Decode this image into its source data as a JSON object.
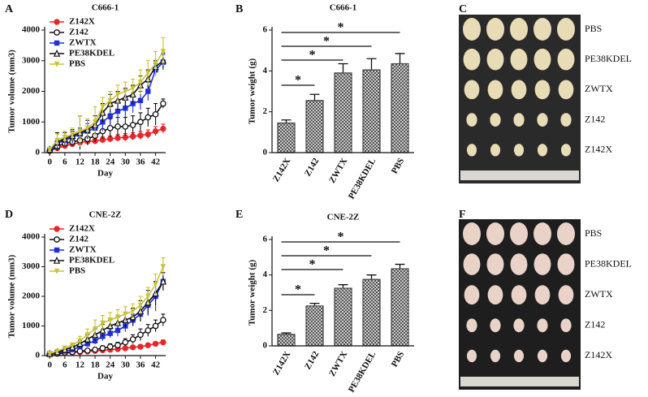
{
  "panels": [
    "A",
    "B",
    "C",
    "D",
    "E",
    "F"
  ],
  "chart_data": [
    {
      "type": "line",
      "title": "C666-1",
      "xlabel": "Day",
      "ylabel": "Tumor volume (mm3)",
      "x": [
        0,
        3,
        6,
        9,
        12,
        15,
        18,
        21,
        24,
        27,
        30,
        33,
        36,
        39,
        42,
        45
      ],
      "xlim": [
        -2,
        46
      ],
      "xticks": [
        0,
        6,
        12,
        18,
        24,
        30,
        36,
        42
      ],
      "ylim": [
        0,
        4000
      ],
      "yticks": [
        0,
        1000,
        2000,
        3000,
        4000
      ],
      "legend": "top-left",
      "series": [
        {
          "name": "Z142X",
          "color": "#e8262a",
          "marker": "circle-filled",
          "values": [
            50,
            150,
            220,
            280,
            330,
            370,
            380,
            420,
            450,
            480,
            500,
            530,
            560,
            600,
            700,
            780
          ],
          "errors": [
            20,
            50,
            60,
            70,
            80,
            80,
            90,
            100,
            100,
            110,
            120,
            120,
            130,
            140,
            150,
            150
          ]
        },
        {
          "name": "Z142",
          "color": "#111111",
          "marker": "circle-open",
          "values": [
            60,
            200,
            300,
            350,
            400,
            450,
            550,
            700,
            800,
            850,
            850,
            900,
            1000,
            1150,
            1250,
            1600
          ],
          "errors": [
            20,
            80,
            100,
            120,
            150,
            200,
            200,
            250,
            300,
            300,
            300,
            300,
            300,
            300,
            350,
            150
          ]
        },
        {
          "name": "ZWTX",
          "color": "#1f2fd6",
          "marker": "square",
          "values": [
            80,
            300,
            400,
            500,
            600,
            700,
            800,
            1000,
            1200,
            1350,
            1450,
            1600,
            1700,
            2000,
            2700,
            2950
          ],
          "errors": [
            30,
            100,
            150,
            200,
            200,
            250,
            250,
            300,
            300,
            300,
            300,
            300,
            300,
            300,
            200,
            250
          ]
        },
        {
          "name": "PE38KDEL",
          "color": "#111111",
          "marker": "triangle-open",
          "values": [
            100,
            350,
            450,
            550,
            650,
            750,
            900,
            1300,
            1600,
            1700,
            1800,
            1900,
            2200,
            2400,
            2800,
            3000
          ],
          "errors": [
            40,
            300,
            200,
            200,
            550,
            300,
            300,
            300,
            300,
            300,
            300,
            300,
            300,
            300,
            200,
            250
          ]
        },
        {
          "name": "PBS",
          "color": "#c9c23a",
          "marker": "triangle-down",
          "values": [
            100,
            400,
            500,
            600,
            700,
            800,
            1000,
            1500,
            1700,
            1900,
            2000,
            2100,
            2300,
            2600,
            2900,
            3300
          ],
          "errors": [
            40,
            200,
            200,
            200,
            500,
            300,
            500,
            300,
            300,
            300,
            300,
            300,
            400,
            400,
            400,
            450
          ]
        }
      ]
    },
    {
      "type": "bar",
      "title": "C666-1",
      "ylabel": "Tumor weight (g)",
      "categories": [
        "Z142X",
        "Z142",
        "ZWTX",
        "PE38KDEL",
        "PBS"
      ],
      "values": [
        1.45,
        2.55,
        3.9,
        4.05,
        4.35
      ],
      "errors": [
        0.15,
        0.3,
        0.45,
        0.55,
        0.5
      ],
      "ylim": [
        0,
        6
      ],
      "yticks": [
        0,
        2,
        4,
        6
      ],
      "color": "#444444",
      "annotations": [
        "*",
        "*",
        "*",
        "*"
      ]
    },
    {
      "type": "line",
      "title": "CNE-2Z",
      "xlabel": "Day",
      "ylabel": "Tumor volume (mm3)",
      "x": [
        0,
        3,
        6,
        9,
        12,
        15,
        18,
        21,
        24,
        27,
        30,
        33,
        36,
        39,
        42,
        45
      ],
      "xlim": [
        -2,
        46
      ],
      "xticks": [
        0,
        6,
        12,
        18,
        24,
        30,
        36,
        42
      ],
      "ylim": [
        0,
        4000
      ],
      "yticks": [
        0,
        1000,
        2000,
        3000,
        4000
      ],
      "legend": "top-left",
      "series": [
        {
          "name": "Z142X",
          "color": "#e8262a",
          "marker": "circle-filled",
          "values": [
            50,
            60,
            80,
            100,
            120,
            140,
            160,
            180,
            200,
            220,
            250,
            280,
            300,
            350,
            400,
            450
          ],
          "errors": [
            10,
            15,
            20,
            20,
            25,
            30,
            30,
            30,
            40,
            40,
            40,
            50,
            50,
            50,
            60,
            80
          ]
        },
        {
          "name": "Z142",
          "color": "#111111",
          "marker": "circle-open",
          "values": [
            50,
            70,
            100,
            120,
            150,
            170,
            200,
            250,
            300,
            350,
            450,
            550,
            700,
            850,
            1000,
            1200
          ],
          "errors": [
            10,
            20,
            30,
            30,
            40,
            50,
            60,
            80,
            100,
            100,
            120,
            150,
            200,
            200,
            200,
            200
          ]
        },
        {
          "name": "ZWTX",
          "color": "#1f2fd6",
          "marker": "square",
          "values": [
            60,
            100,
            150,
            200,
            300,
            400,
            500,
            650,
            750,
            850,
            1000,
            1200,
            1400,
            1700,
            2000,
            2500
          ],
          "errors": [
            15,
            30,
            40,
            60,
            80,
            100,
            120,
            150,
            150,
            200,
            200,
            200,
            250,
            350,
            500,
            300
          ]
        },
        {
          "name": "PE38KDEL",
          "color": "#111111",
          "marker": "triangle-open",
          "values": [
            60,
            120,
            200,
            280,
            400,
            550,
            700,
            850,
            1000,
            1100,
            1200,
            1300,
            1500,
            1800,
            2100,
            2500
          ],
          "errors": [
            15,
            40,
            60,
            80,
            100,
            150,
            200,
            200,
            200,
            200,
            250,
            300,
            350,
            400,
            400,
            300
          ]
        },
        {
          "name": "PBS",
          "color": "#c9c23a",
          "marker": "triangle-down",
          "values": [
            70,
            150,
            250,
            350,
            500,
            700,
            900,
            1100,
            1200,
            1300,
            1400,
            1500,
            1700,
            2000,
            2400,
            3000
          ],
          "errors": [
            20,
            40,
            60,
            80,
            150,
            200,
            300,
            250,
            250,
            250,
            250,
            250,
            300,
            300,
            350,
            300
          ]
        }
      ]
    },
    {
      "type": "bar",
      "title": "CNE-2Z",
      "ylabel": "Tumor weight (g)",
      "categories": [
        "Z142X",
        "Z142",
        "ZWTX",
        "PE38KDEL",
        "PBS"
      ],
      "values": [
        0.65,
        2.25,
        3.25,
        3.75,
        4.35
      ],
      "errors": [
        0.08,
        0.15,
        0.2,
        0.25,
        0.25
      ],
      "ylim": [
        0,
        6
      ],
      "yticks": [
        0,
        2,
        4,
        6
      ],
      "color": "#444444",
      "annotations": [
        "*",
        "*",
        "*",
        "*"
      ]
    }
  ],
  "photos": [
    {
      "labels": [
        "PBS",
        "PE38KDEL",
        "ZWTX",
        "Z142",
        "Z142X"
      ]
    },
    {
      "labels": [
        "PBS",
        "PE38KDEL",
        "ZWTX",
        "Z142",
        "Z142X"
      ]
    }
  ]
}
